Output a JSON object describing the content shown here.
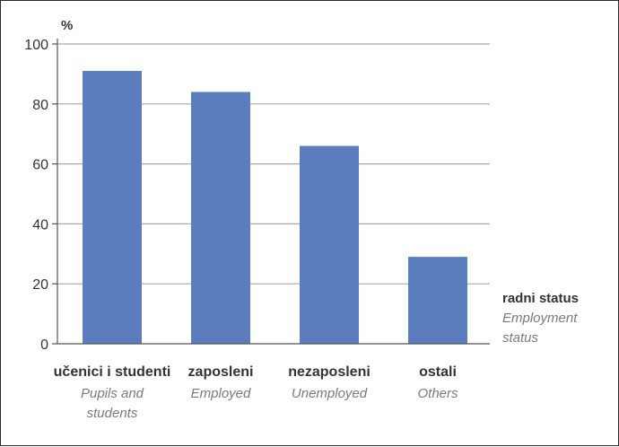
{
  "chart_data": {
    "type": "bar",
    "unit_label": "%",
    "categories": [
      "učenici i studenti",
      "zaposleni",
      "nezaposleni",
      "ostali"
    ],
    "categories_en": [
      [
        "Pupils and",
        "students"
      ],
      [
        "Employed"
      ],
      [
        "Unemployed"
      ],
      [
        "Others"
      ]
    ],
    "values": [
      91,
      84,
      66,
      29
    ],
    "xlabel": "radni status",
    "xlabel_en": [
      "Employment",
      "status"
    ],
    "ylabel": "%",
    "ylim": [
      0,
      100
    ],
    "yticks": [
      0,
      20,
      40,
      60,
      80,
      100
    ],
    "grid": true,
    "colors": {
      "bar": "#5b7dbd",
      "grid": "#a9a9a9",
      "axis": "#555555"
    }
  }
}
